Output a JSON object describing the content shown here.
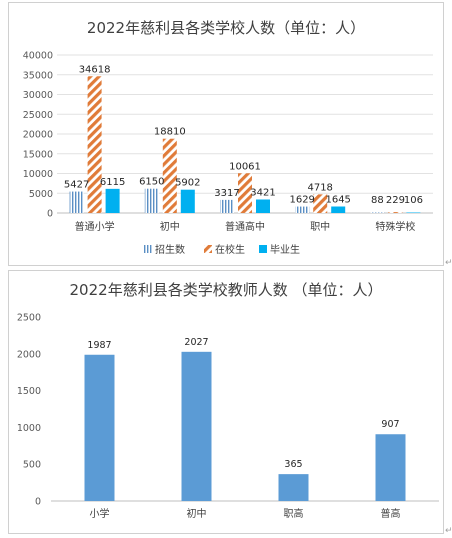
{
  "chart_data": [
    {
      "type": "bar",
      "title": "2022年慈利县各类学校人数（单位：人）",
      "categories": [
        "普通小学",
        "初中",
        "普通高中",
        "职中",
        "特殊学校"
      ],
      "series": [
        {
          "name": "招生数",
          "values": [
            5427,
            6150,
            3317,
            1629,
            88
          ],
          "color": "#5b8fc4",
          "pattern": "vertical-lines"
        },
        {
          "name": "在校生",
          "values": [
            34618,
            18810,
            10061,
            4718,
            229
          ],
          "color": "#e07b39",
          "pattern": "diagonal-stripes"
        },
        {
          "name": "毕业生",
          "values": [
            6115,
            5902,
            3421,
            1645,
            106
          ],
          "color": "#00b0f0",
          "pattern": "solid"
        }
      ],
      "ylim": [
        0,
        40000
      ],
      "yticks": [
        "0",
        "5000",
        "10000",
        "15000",
        "20000",
        "25000",
        "30000",
        "35000",
        "40000"
      ],
      "grid": true,
      "legend": "bottom"
    },
    {
      "type": "bar",
      "title": "2022年慈利县各类学校教师人数 （单位：人）",
      "categories": [
        "小学",
        "初中",
        "职高",
        "普高"
      ],
      "values": [
        1987,
        2027,
        365,
        907
      ],
      "color": "#5b9bd5",
      "ylim": [
        0,
        2500
      ],
      "yticks": [
        "0",
        "500",
        "1000",
        "1500",
        "2000",
        "2500"
      ],
      "grid": false
    }
  ]
}
